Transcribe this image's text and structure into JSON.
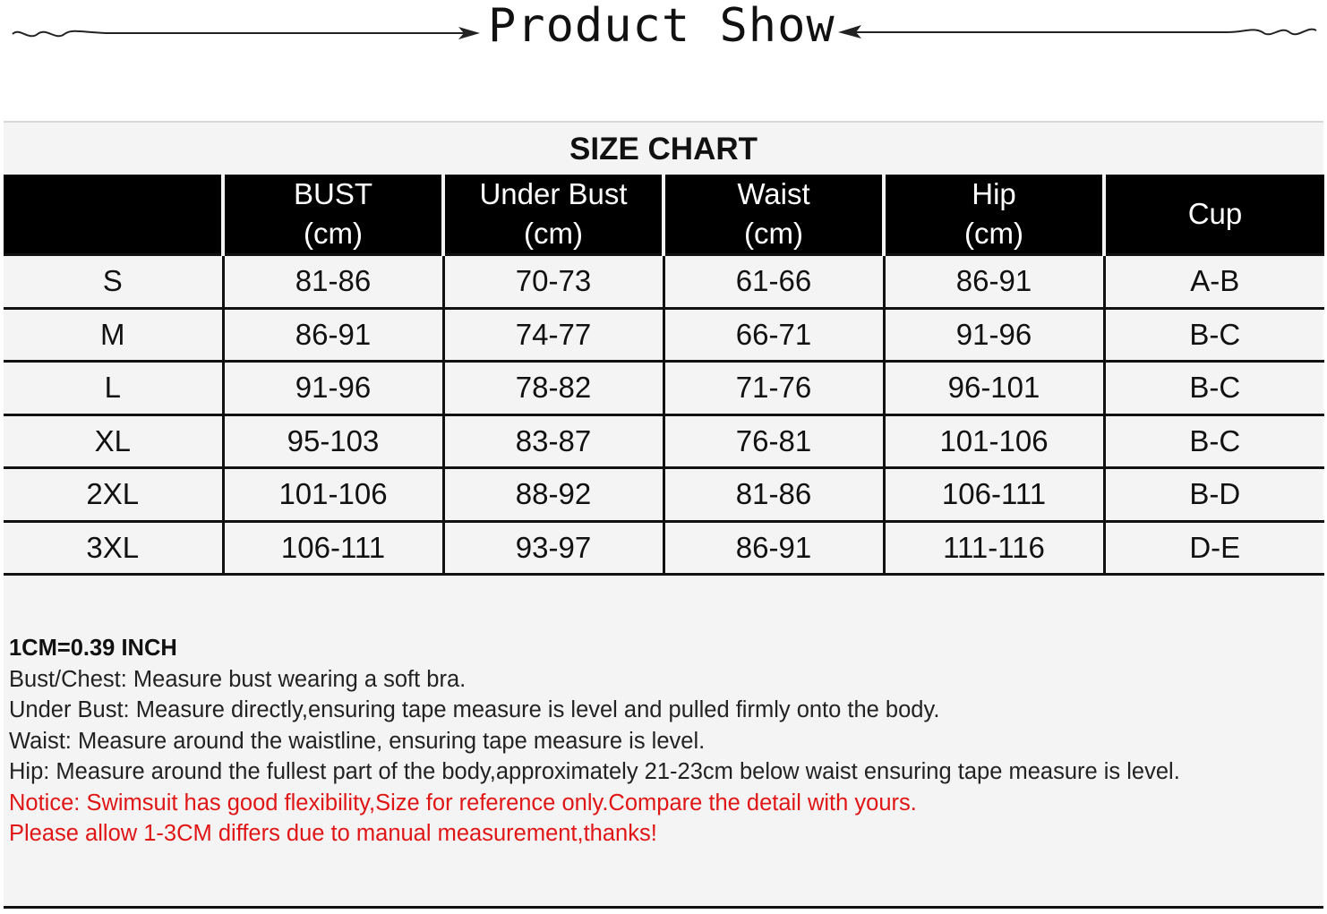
{
  "banner": {
    "title": "Product Show"
  },
  "size_chart": {
    "title": "SIZE CHART",
    "headers": [
      {
        "line1": "",
        "line2": ""
      },
      {
        "line1": "BUST",
        "line2": "(cm)"
      },
      {
        "line1": "Under Bust",
        "line2": "(cm)"
      },
      {
        "line1": "Waist",
        "line2": "(cm)"
      },
      {
        "line1": "Hip",
        "line2": "(cm)"
      },
      {
        "line1": "Cup",
        "line2": ""
      }
    ],
    "rows": [
      [
        "S",
        "81-86",
        "70-73",
        "61-66",
        "86-91",
        "A-B"
      ],
      [
        "M",
        "86-91",
        "74-77",
        "66-71",
        "91-96",
        "B-C"
      ],
      [
        "L",
        "91-96",
        "78-82",
        "71-76",
        "96-101",
        "B-C"
      ],
      [
        "XL",
        "95-103",
        "83-87",
        "76-81",
        "101-106",
        "B-C"
      ],
      [
        "2XL",
        "101-106",
        "88-92",
        "81-86",
        "106-111",
        "B-D"
      ],
      [
        "3XL",
        "106-111",
        "93-97",
        "86-91",
        "111-116",
        "D-E"
      ]
    ]
  },
  "notes": {
    "heading": "1CM=0.39 INCH",
    "lines": [
      "Bust/Chest: Measure bust wearing a soft bra.",
      "Under Bust: Measure directly,ensuring tape measure is level and pulled firmly onto the body.",
      "Waist: Measure around the waistline, ensuring tape measure is level.",
      "Hip: Measure around the fullest part of the body,approximately 21-23cm below waist ensuring tape measure is level."
    ],
    "notice_lines": [
      "Notice:  Swimsuit has good flexibility,Size for reference only.Compare the detail with yours.",
      "Please allow 1-3CM differs due to manual measurement,thanks!"
    ]
  },
  "colors": {
    "header_bg": "#000000",
    "panel_bg": "#f4f4f4",
    "notice": "#e01616"
  }
}
